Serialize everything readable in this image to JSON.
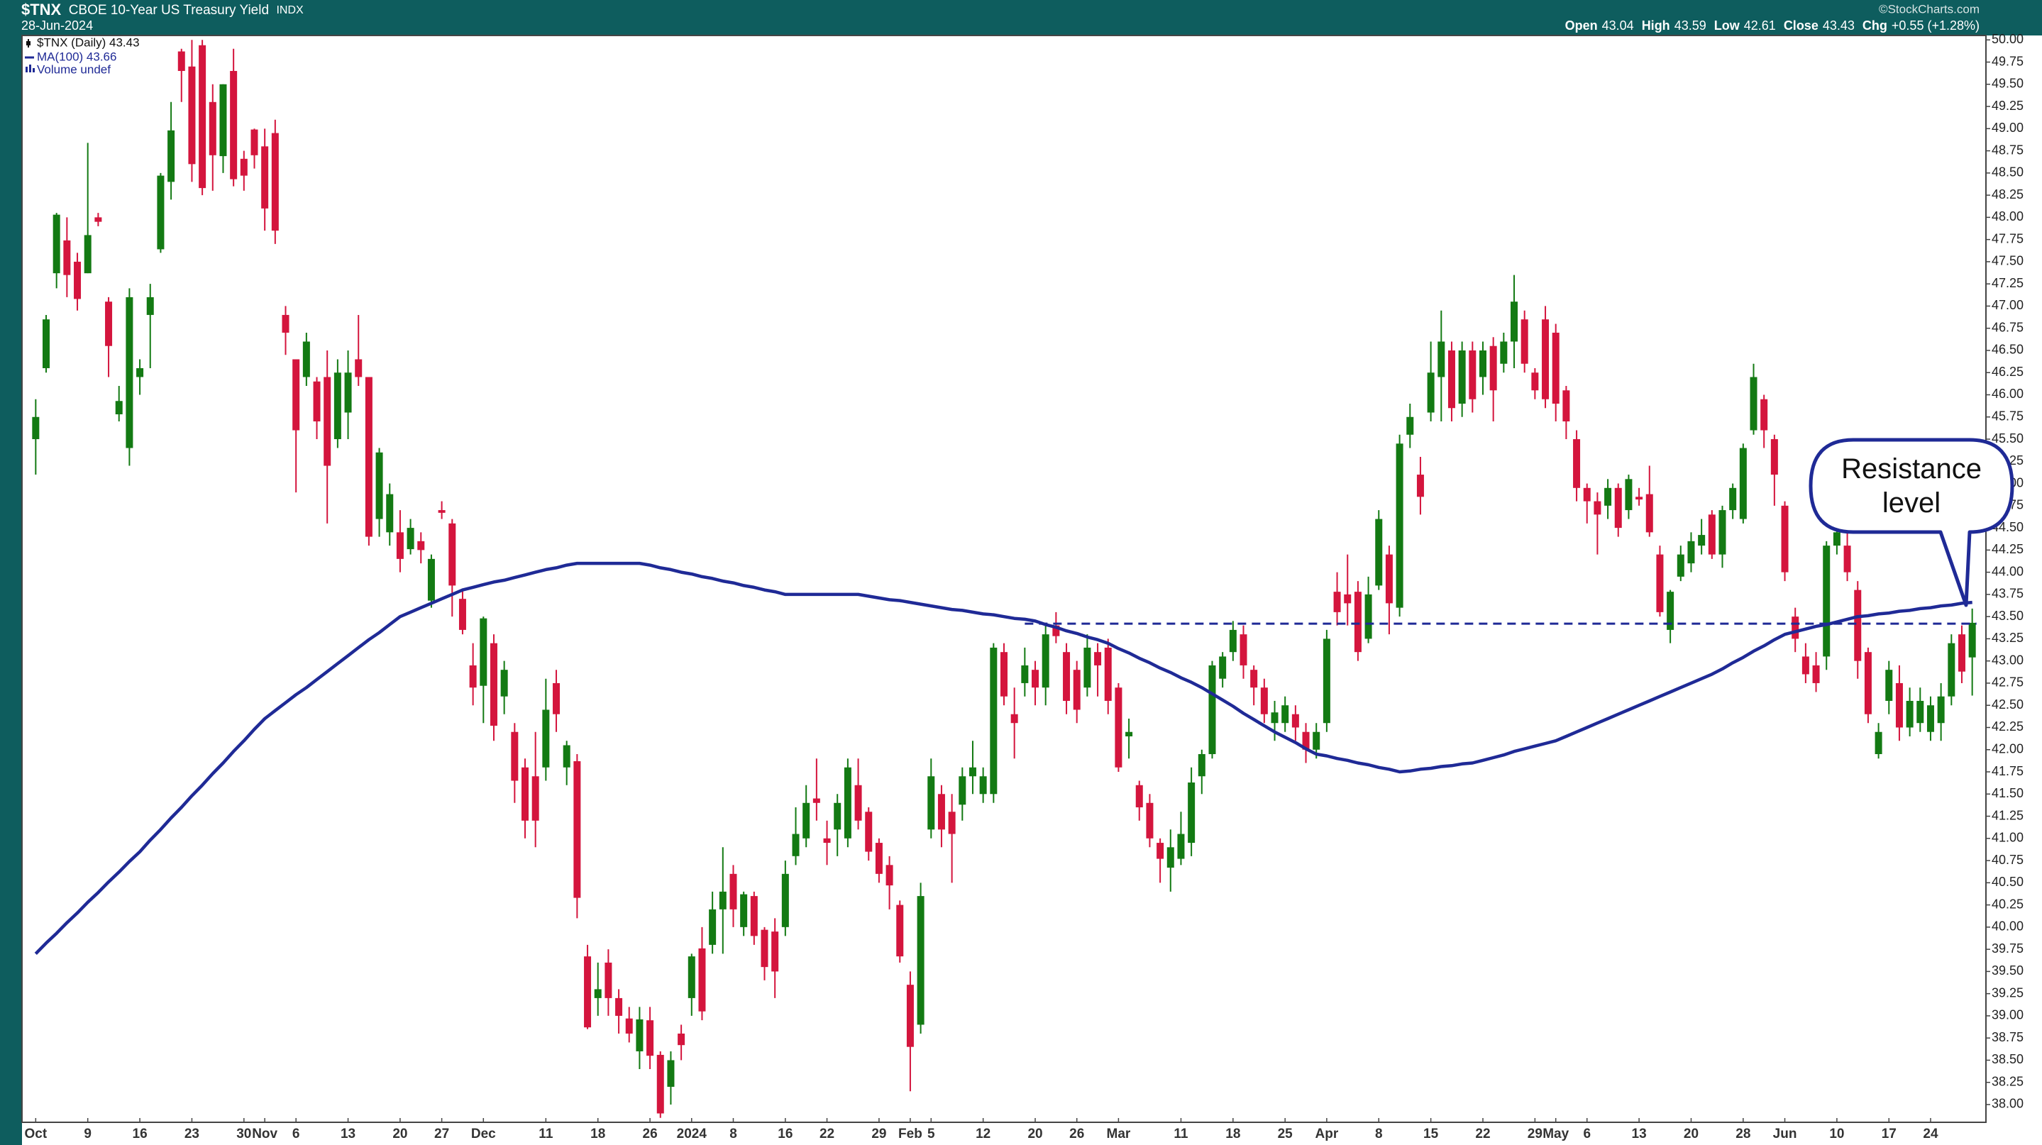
{
  "chart_data": {
    "type": "candlestick",
    "title": "$TNX",
    "subtitle": "CBOE 10-Year US Treasury Yield",
    "exchange": "INDX",
    "date": "28-Jun-2024",
    "credit": "©StockCharts.com",
    "quote": [
      {
        "label": "Open",
        "value": 43.04
      },
      {
        "label": "High",
        "value": 43.59
      },
      {
        "label": "Low",
        "value": 42.61
      },
      {
        "label": "Close",
        "value": 43.43
      }
    ],
    "change_label": "Chg",
    "change": "+0.55 (+1.28%)",
    "price_name": "$TNX (Daily) 43.43",
    "volume_name": "Volume undef",
    "up_color": "#137a13",
    "down_color": "#d4153d",
    "categories": [
      "Oct",
      null,
      null,
      null,
      null,
      "9",
      null,
      null,
      null,
      null,
      "16",
      null,
      null,
      null,
      null,
      "23",
      null,
      null,
      null,
      null,
      "30",
      null,
      "Nov",
      null,
      null,
      "6",
      null,
      null,
      null,
      null,
      "13",
      null,
      null,
      null,
      null,
      "20",
      null,
      null,
      null,
      "27",
      null,
      null,
      null,
      "Dec",
      null,
      null,
      null,
      null,
      null,
      "11",
      null,
      null,
      null,
      null,
      "18",
      null,
      null,
      null,
      null,
      "26",
      null,
      null,
      null,
      "2024",
      null,
      null,
      null,
      "8",
      null,
      null,
      null,
      null,
      "16",
      null,
      null,
      null,
      "22",
      null,
      null,
      null,
      null,
      "29",
      null,
      null,
      "Feb",
      null,
      "5",
      null,
      null,
      null,
      null,
      "12",
      null,
      null,
      null,
      null,
      "20",
      null,
      null,
      null,
      "26",
      null,
      null,
      null,
      "Mar",
      null,
      null,
      null,
      null,
      null,
      "11",
      null,
      null,
      null,
      null,
      "18",
      null,
      null,
      null,
      null,
      "25",
      null,
      null,
      null,
      "Apr",
      null,
      null,
      null,
      null,
      "8",
      null,
      null,
      null,
      null,
      "15",
      null,
      null,
      null,
      null,
      "22",
      null,
      null,
      null,
      null,
      "29",
      null,
      "May",
      null,
      null,
      "6",
      null,
      null,
      null,
      null,
      "13",
      null,
      null,
      null,
      null,
      "20",
      null,
      null,
      null,
      null,
      "28",
      null,
      null,
      null,
      "Jun",
      null,
      null,
      null,
      null,
      "10",
      null,
      null,
      null,
      null,
      "17",
      null,
      null,
      null,
      "24",
      null,
      null,
      null,
      null
    ],
    "open": [
      45.5,
      46.3,
      47.37,
      47.74,
      47.5,
      47.37,
      48.0,
      47.05,
      45.78,
      45.4,
      46.2,
      46.9,
      47.64,
      48.4,
      49.87,
      49.7,
      49.94,
      49.3,
      48.69,
      49.65,
      48.66,
      48.99,
      48.8,
      48.95,
      46.9,
      46.4,
      46.2,
      46.15,
      46.2,
      45.5,
      45.8,
      46.4,
      46.2,
      44.6,
      44.45,
      44.45,
      44.26,
      44.35,
      43.68,
      44.7,
      44.55,
      43.7,
      42.95,
      42.72,
      43.2,
      42.6,
      42.2,
      41.8,
      41.7,
      41.8,
      42.75,
      41.8,
      41.87,
      39.67,
      39.2,
      39.6,
      39.2,
      38.97,
      38.6,
      38.95,
      38.56,
      38.2,
      38.8,
      39.2,
      39.76,
      39.8,
      40.2,
      40.6,
      40.0,
      40.35,
      39.97,
      39.95,
      40.0,
      40.8,
      41.0,
      41.45,
      41.0,
      41.1,
      41.0,
      41.6,
      41.3,
      40.95,
      40.7,
      40.25,
      39.35,
      38.9,
      41.1,
      41.5,
      41.3,
      41.38,
      41.7,
      41.5,
      41.5,
      43.1,
      42.4,
      42.75,
      42.9,
      42.7,
      43.4,
      43.1,
      42.9,
      42.7,
      43.1,
      43.15,
      42.7,
      42.15,
      41.6,
      41.4,
      40.95,
      40.67,
      40.77,
      40.95,
      41.7,
      41.95,
      42.8,
      43.1,
      43.3,
      42.9,
      42.7,
      42.3,
      42.3,
      42.4,
      42.2,
      42.0,
      42.3,
      43.78,
      43.75,
      43.78,
      43.25,
      43.85,
      44.2,
      43.6,
      45.55,
      45.1,
      45.8,
      46.2,
      46.5,
      45.9,
      46.5,
      46.2,
      46.55,
      46.35,
      46.6,
      46.85,
      46.25,
      46.85,
      46.7,
      46.05,
      45.5,
      44.95,
      44.8,
      44.75,
      44.95,
      44.7,
      44.85,
      44.88,
      44.2,
      43.35,
      43.95,
      44.1,
      44.3,
      44.65,
      44.2,
      44.7,
      44.6,
      45.6,
      45.95,
      45.5,
      44.75,
      43.5,
      43.05,
      42.95,
      43.05,
      44.3,
      44.3,
      43.8,
      43.1,
      41.95,
      42.55,
      42.75,
      42.25,
      42.3,
      42.2,
      42.3,
      42.6,
      43.3,
      43.04
    ],
    "high": [
      45.95,
      46.9,
      48.05,
      48.0,
      47.6,
      48.84,
      48.05,
      47.1,
      46.1,
      47.2,
      46.4,
      47.25,
      48.5,
      49.3,
      49.9,
      50.0,
      50.0,
      49.5,
      49.5,
      49.9,
      48.75,
      49.0,
      49.0,
      49.1,
      47.0,
      46.4,
      46.7,
      46.2,
      46.5,
      46.4,
      46.5,
      46.9,
      46.2,
      45.4,
      45.0,
      44.7,
      44.6,
      44.45,
      44.2,
      44.8,
      44.6,
      43.8,
      43.2,
      43.5,
      43.3,
      43.0,
      42.3,
      41.9,
      42.2,
      42.8,
      42.9,
      42.1,
      41.95,
      39.8,
      39.6,
      39.75,
      39.3,
      39.1,
      39.1,
      39.1,
      38.6,
      38.6,
      38.9,
      39.7,
      40.0,
      40.4,
      40.9,
      40.7,
      40.4,
      40.4,
      40.0,
      40.1,
      40.75,
      41.35,
      41.6,
      41.9,
      41.2,
      41.5,
      41.9,
      41.9,
      41.35,
      41.0,
      40.8,
      40.3,
      39.5,
      40.5,
      41.9,
      41.6,
      41.5,
      41.8,
      42.1,
      41.8,
      43.2,
      43.2,
      42.7,
      43.15,
      43.0,
      43.4,
      43.55,
      43.2,
      43.0,
      43.3,
      43.2,
      43.25,
      42.75,
      42.35,
      41.65,
      41.5,
      41.0,
      41.1,
      41.3,
      41.8,
      42.0,
      43.0,
      43.1,
      43.45,
      43.4,
      42.95,
      42.8,
      42.55,
      42.6,
      42.5,
      42.3,
      42.3,
      43.35,
      44.0,
      44.2,
      43.9,
      43.95,
      44.7,
      44.3,
      45.55,
      45.9,
      45.3,
      46.6,
      46.95,
      46.6,
      46.6,
      46.6,
      46.6,
      46.65,
      46.7,
      47.35,
      46.95,
      46.3,
      47.0,
      46.8,
      46.1,
      45.6,
      45.0,
      44.9,
      45.05,
      45.0,
      45.1,
      44.95,
      45.2,
      44.3,
      43.8,
      44.3,
      44.45,
      44.6,
      44.7,
      44.75,
      45.0,
      45.45,
      46.35,
      46.0,
      45.55,
      44.8,
      43.6,
      43.2,
      43.1,
      44.35,
      44.55,
      44.5,
      43.9,
      43.15,
      42.3,
      43.0,
      42.95,
      42.7,
      42.7,
      42.6,
      42.75,
      43.3,
      43.4,
      43.59
    ],
    "low": [
      45.1,
      46.25,
      47.2,
      47.1,
      46.95,
      47.37,
      47.9,
      46.2,
      45.7,
      45.2,
      46.0,
      46.3,
      47.6,
      48.2,
      49.3,
      48.4,
      48.25,
      48.3,
      48.5,
      48.35,
      48.3,
      48.55,
      47.85,
      47.7,
      46.45,
      44.9,
      46.1,
      45.5,
      44.55,
      45.4,
      45.5,
      46.1,
      44.3,
      44.4,
      44.3,
      44.0,
      44.2,
      44.1,
      43.6,
      44.6,
      43.5,
      43.3,
      42.5,
      42.3,
      42.1,
      42.4,
      41.4,
      41.0,
      40.9,
      41.65,
      42.2,
      41.6,
      40.1,
      38.85,
      39.0,
      39.0,
      38.8,
      38.7,
      38.4,
      38.4,
      37.85,
      38.0,
      38.5,
      39.0,
      38.95,
      39.7,
      39.7,
      40.0,
      39.9,
      39.8,
      39.4,
      39.2,
      39.9,
      40.7,
      40.9,
      41.2,
      40.7,
      40.8,
      40.9,
      41.1,
      40.75,
      40.5,
      40.2,
      39.6,
      38.15,
      38.8,
      41.0,
      40.9,
      40.5,
      41.2,
      41.5,
      41.4,
      41.4,
      42.5,
      41.9,
      42.6,
      42.5,
      42.5,
      43.2,
      42.4,
      42.3,
      42.6,
      42.6,
      42.4,
      41.75,
      41.9,
      41.2,
      40.9,
      40.5,
      40.4,
      40.7,
      40.8,
      41.5,
      41.9,
      42.7,
      43.0,
      42.8,
      42.5,
      42.3,
      42.1,
      42.2,
      42.1,
      41.85,
      41.9,
      42.2,
      43.4,
      43.4,
      43.0,
      43.2,
      43.8,
      43.3,
      43.5,
      45.4,
      44.65,
      45.7,
      45.7,
      45.7,
      45.75,
      45.8,
      46.0,
      45.7,
      46.25,
      46.3,
      46.25,
      45.95,
      45.85,
      45.7,
      45.5,
      44.8,
      44.55,
      44.2,
      44.6,
      44.4,
      44.6,
      44.75,
      44.4,
      43.5,
      43.2,
      43.9,
      44.0,
      44.2,
      44.15,
      44.05,
      44.6,
      44.55,
      45.55,
      45.4,
      44.75,
      43.9,
      43.1,
      42.75,
      42.65,
      42.9,
      44.2,
      43.9,
      42.8,
      42.3,
      41.9,
      42.4,
      42.1,
      42.15,
      42.2,
      42.1,
      42.1,
      42.5,
      42.75,
      42.61
    ],
    "close": [
      45.75,
      46.85,
      48.03,
      47.35,
      47.08,
      47.8,
      47.95,
      46.55,
      45.93,
      47.1,
      46.3,
      47.1,
      48.47,
      48.98,
      49.65,
      48.6,
      48.33,
      48.7,
      49.5,
      48.43,
      48.47,
      48.7,
      48.1,
      47.85,
      46.7,
      45.6,
      46.6,
      45.7,
      45.2,
      46.25,
      46.25,
      46.2,
      44.4,
      45.35,
      44.88,
      44.15,
      44.5,
      44.25,
      44.15,
      44.67,
      43.85,
      43.35,
      42.7,
      43.48,
      42.27,
      42.9,
      41.65,
      41.2,
      41.2,
      42.45,
      42.4,
      42.05,
      40.33,
      38.87,
      39.3,
      39.2,
      39.0,
      38.8,
      38.96,
      38.55,
      37.9,
      38.5,
      38.67,
      39.67,
      39.05,
      40.2,
      40.4,
      40.2,
      40.37,
      39.9,
      39.55,
      39.5,
      40.6,
      41.05,
      41.4,
      41.4,
      40.95,
      41.4,
      41.8,
      41.2,
      40.85,
      40.6,
      40.47,
      39.67,
      38.65,
      40.35,
      41.7,
      41.1,
      41.05,
      41.7,
      41.8,
      41.7,
      43.15,
      42.6,
      42.3,
      42.95,
      42.7,
      43.3,
      43.28,
      42.55,
      42.45,
      43.15,
      42.95,
      42.55,
      41.8,
      42.2,
      41.35,
      41.0,
      40.77,
      40.9,
      41.05,
      41.63,
      41.95,
      42.95,
      43.05,
      43.35,
      42.95,
      42.7,
      42.4,
      42.42,
      42.5,
      42.25,
      42.0,
      42.2,
      43.25,
      43.55,
      43.65,
      43.1,
      43.75,
      44.6,
      43.65,
      45.45,
      45.75,
      44.85,
      46.25,
      46.6,
      45.85,
      46.5,
      45.95,
      46.5,
      46.05,
      46.6,
      47.05,
      46.35,
      46.05,
      45.95,
      45.9,
      45.7,
      44.95,
      44.8,
      44.65,
      44.95,
      44.5,
      45.05,
      44.82,
      44.45,
      43.55,
      43.78,
      44.2,
      44.35,
      44.42,
      44.2,
      44.7,
      44.95,
      45.4,
      46.2,
      45.6,
      45.1,
      44.0,
      43.25,
      42.85,
      42.75,
      44.3,
      44.45,
      44.0,
      43.0,
      42.4,
      42.2,
      42.9,
      42.25,
      42.55,
      42.55,
      42.5,
      42.6,
      43.2,
      42.88,
      43.43
    ],
    "ma": {
      "name": "MA(100) 43.66",
      "color": "#1f2a96",
      "values": [
        39.7,
        39.82,
        39.93,
        40.05,
        40.16,
        40.28,
        40.39,
        40.51,
        40.62,
        40.74,
        40.85,
        40.98,
        41.1,
        41.23,
        41.35,
        41.48,
        41.6,
        41.73,
        41.85,
        41.98,
        42.1,
        42.23,
        42.35,
        42.44,
        42.53,
        42.62,
        42.7,
        42.79,
        42.88,
        42.97,
        43.06,
        43.15,
        43.24,
        43.32,
        43.41,
        43.5,
        43.55,
        43.6,
        43.65,
        43.7,
        43.75,
        43.8,
        43.83,
        43.86,
        43.89,
        43.91,
        43.94,
        43.97,
        44.0,
        44.03,
        44.05,
        44.08,
        44.1,
        44.1,
        44.1,
        44.1,
        44.1,
        44.1,
        44.1,
        44.08,
        44.05,
        44.03,
        44.0,
        43.98,
        43.95,
        43.93,
        43.9,
        43.88,
        43.85,
        43.83,
        43.8,
        43.78,
        43.75,
        43.75,
        43.75,
        43.75,
        43.75,
        43.75,
        43.75,
        43.75,
        43.73,
        43.71,
        43.69,
        43.68,
        43.66,
        43.64,
        43.62,
        43.6,
        43.58,
        43.57,
        43.55,
        43.53,
        43.52,
        43.5,
        43.48,
        43.47,
        43.45,
        43.41,
        43.38,
        43.34,
        43.31,
        43.27,
        43.24,
        43.2,
        43.14,
        43.09,
        43.03,
        42.98,
        42.92,
        42.87,
        42.81,
        42.76,
        42.7,
        42.63,
        42.56,
        42.49,
        42.41,
        42.34,
        42.27,
        42.2,
        42.14,
        42.08,
        42.01,
        41.95,
        41.93,
        41.9,
        41.88,
        41.85,
        41.83,
        41.8,
        41.78,
        41.75,
        41.76,
        41.78,
        41.79,
        41.81,
        41.82,
        41.84,
        41.85,
        41.88,
        41.91,
        41.94,
        41.98,
        42.01,
        42.04,
        42.07,
        42.1,
        42.15,
        42.2,
        42.25,
        42.3,
        42.35,
        42.4,
        42.45,
        42.5,
        42.55,
        42.6,
        42.65,
        42.7,
        42.75,
        42.8,
        42.85,
        42.91,
        42.98,
        43.04,
        43.11,
        43.17,
        43.24,
        43.3,
        43.33,
        43.36,
        43.39,
        43.41,
        43.44,
        43.47,
        43.5,
        43.51,
        43.53,
        43.54,
        43.56,
        43.57,
        43.59,
        43.6,
        43.62,
        43.63,
        43.65,
        43.66
      ]
    },
    "annotation": {
      "text": "Resistance level",
      "value": 43.42,
      "color": "#1f2a96"
    },
    "ylim": [
      37.8,
      50.05
    ],
    "yticks": [
      {
        "value": 38,
        "label": "38.00"
      },
      {
        "value": 38.25,
        "label": "38.25"
      },
      {
        "value": 38.5,
        "label": "38.50"
      },
      {
        "value": 38.75,
        "label": "38.75"
      },
      {
        "value": 39,
        "label": "39.00"
      },
      {
        "value": 39.25,
        "label": "39.25"
      },
      {
        "value": 39.5,
        "label": "39.50"
      },
      {
        "value": 39.75,
        "label": "39.75"
      },
      {
        "value": 40,
        "label": "40.00"
      },
      {
        "value": 40.25,
        "label": "40.25"
      },
      {
        "value": 40.5,
        "label": "40.50"
      },
      {
        "value": 40.75,
        "label": "40.75"
      },
      {
        "value": 41,
        "label": "41.00"
      },
      {
        "value": 41.25,
        "label": "41.25"
      },
      {
        "value": 41.5,
        "label": "41.50"
      },
      {
        "value": 41.75,
        "label": "41.75"
      },
      {
        "value": 42,
        "label": "42.00"
      },
      {
        "value": 42.25,
        "label": "42.25"
      },
      {
        "value": 42.5,
        "label": "42.50"
      },
      {
        "value": 42.75,
        "label": "42.75"
      },
      {
        "value": 43,
        "label": "43.00"
      },
      {
        "value": 43.25,
        "label": "43.25"
      },
      {
        "value": 43.5,
        "label": "43.50"
      },
      {
        "value": 43.75,
        "label": "43.75"
      },
      {
        "value": 44,
        "label": "44.00"
      },
      {
        "value": 44.25,
        "label": "44.25"
      },
      {
        "value": 44.5,
        "label": "44.50"
      },
      {
        "value": 44.75,
        "label": "44.75"
      },
      {
        "value": 45,
        "label": "45.00"
      },
      {
        "value": 45.25,
        "label": "45.25"
      },
      {
        "value": 45.5,
        "label": "45.50"
      },
      {
        "value": 45.75,
        "label": "45.75"
      },
      {
        "value": 46,
        "label": "46.00"
      },
      {
        "value": 46.25,
        "label": "46.25"
      },
      {
        "value": 46.5,
        "label": "46.50"
      },
      {
        "value": 46.75,
        "label": "46.75"
      },
      {
        "value": 47,
        "label": "47.00"
      },
      {
        "value": 47.25,
        "label": "47.25"
      },
      {
        "value": 47.5,
        "label": "47.50"
      },
      {
        "value": 47.75,
        "label": "47.75"
      },
      {
        "value": 48,
        "label": "48.00"
      },
      {
        "value": 48.25,
        "label": "48.25"
      },
      {
        "value": 48.5,
        "label": "48.50"
      },
      {
        "value": 48.75,
        "label": "48.75"
      },
      {
        "value": 49,
        "label": "49.00"
      },
      {
        "value": 49.25,
        "label": "49.25"
      },
      {
        "value": 49.5,
        "label": "49.50"
      },
      {
        "value": 49.75,
        "label": "49.75"
      },
      {
        "value": 50,
        "label": "50.00"
      }
    ]
  }
}
